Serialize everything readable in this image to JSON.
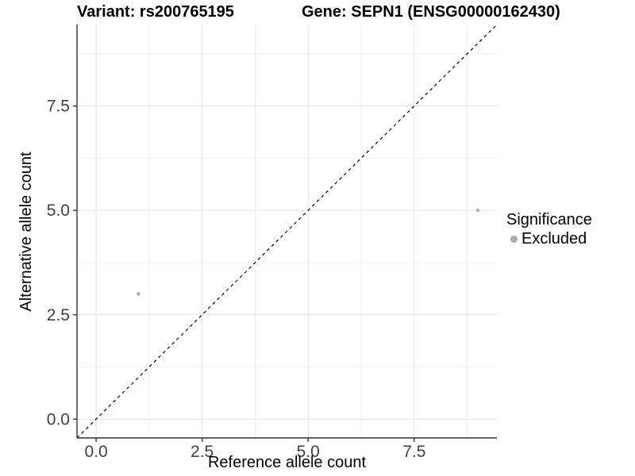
{
  "header": {
    "variant_title": "Variant: rs200765195",
    "gene_title": "Gene: SEPN1 (ENSG00000162430)"
  },
  "chart_data": {
    "type": "scatter",
    "title": "Variant: rs200765195   Gene: SEPN1 (ENSG00000162430)",
    "xlabel": "Reference allele count",
    "ylabel": "Alternative allele count",
    "xlim": [
      -0.45,
      9.45
    ],
    "ylim": [
      -0.45,
      9.45
    ],
    "x_ticks": {
      "values": [
        0,
        2.5,
        5,
        7.5
      ],
      "labels": [
        "0.0",
        "2.5",
        "5.0",
        "7.5"
      ]
    },
    "y_ticks": {
      "values": [
        0,
        2.5,
        5,
        7.5
      ],
      "labels": [
        "0.0",
        "2.5",
        "5.0",
        "7.5"
      ]
    },
    "minor_grid": [
      1.25,
      3.75,
      6.25,
      8.75
    ],
    "grid": true,
    "reference_line": {
      "kind": "identity y=x",
      "style": "dashed",
      "color": "#000000",
      "from": [
        -0.45,
        -0.45
      ],
      "to": [
        9.45,
        9.45
      ]
    },
    "series": [
      {
        "name": "Excluded",
        "color": "#b8b8b8",
        "points": [
          {
            "x": 1,
            "y": 3
          },
          {
            "x": 9,
            "y": 5
          }
        ]
      }
    ],
    "legend": {
      "title": "Significance",
      "position": "right",
      "entries": [
        {
          "label": "Excluded",
          "color": "#aaaaaa"
        }
      ]
    },
    "colors": {
      "grid_major": "#e4e4e4",
      "grid_minor": "#f1f1f1",
      "axis_line": "#333333",
      "tick_mark": "#333333",
      "tick_text": "#404040",
      "background": "#ffffff"
    }
  }
}
